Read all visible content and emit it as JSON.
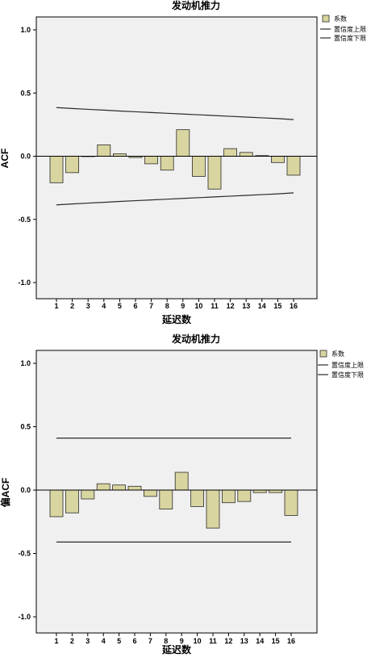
{
  "chart_data": [
    {
      "type": "bar",
      "title": "发动机推力",
      "xlabel": "延迟数",
      "ylabel": "ACF",
      "ylim": [
        -1.0,
        1.0
      ],
      "yticks": [
        "1.0",
        "0.5",
        "0.0",
        "-0.5",
        "-1.0"
      ],
      "categories": [
        "1",
        "2",
        "3",
        "4",
        "5",
        "6",
        "7",
        "8",
        "9",
        "10",
        "11",
        "12",
        "13",
        "14",
        "15",
        "16"
      ],
      "series": [
        {
          "name": "系数",
          "values": [
            -0.21,
            -0.13,
            0.0,
            0.09,
            0.02,
            -0.01,
            -0.06,
            -0.11,
            0.21,
            -0.16,
            -0.26,
            0.06,
            0.03,
            0.005,
            -0.05,
            -0.15
          ]
        },
        {
          "name": "置信度上限",
          "values": [
            0.385,
            0.378,
            0.371,
            0.365,
            0.358,
            0.352,
            0.346,
            0.34,
            0.334,
            0.328,
            0.322,
            0.316,
            0.31,
            0.304,
            0.298,
            0.29
          ]
        },
        {
          "name": "置信度下限",
          "values": [
            -0.385,
            -0.378,
            -0.371,
            -0.365,
            -0.358,
            -0.352,
            -0.346,
            -0.34,
            -0.334,
            -0.328,
            -0.322,
            -0.316,
            -0.31,
            -0.304,
            -0.298,
            -0.29
          ]
        }
      ],
      "colors": {
        "bar": "#d9d5a0",
        "bar_stroke": "#2b2b2b",
        "plot_bg": "#f0f0f0",
        "line": "#2b2b2b"
      },
      "legend": {
        "position": "top-right",
        "items": [
          "系数",
          "置信度上限",
          "置信度下限"
        ]
      },
      "grid": false
    },
    {
      "type": "bar",
      "title": "发动机推力",
      "xlabel": "延迟数",
      "ylabel": "偏ACF",
      "ylim": [
        -1.0,
        1.0
      ],
      "yticks": [
        "1.0",
        "0.5",
        "0.0",
        "-0.5",
        "-1.0"
      ],
      "categories": [
        "1",
        "2",
        "3",
        "4",
        "5",
        "6",
        "7",
        "8",
        "9",
        "10",
        "11",
        "12",
        "13",
        "14",
        "15",
        "16"
      ],
      "series": [
        {
          "name": "系数",
          "values": [
            -0.21,
            -0.18,
            -0.07,
            0.05,
            0.04,
            0.03,
            -0.05,
            -0.15,
            0.14,
            -0.13,
            -0.3,
            -0.1,
            -0.09,
            -0.02,
            -0.02,
            -0.2
          ]
        },
        {
          "name": "置信度上限",
          "values": [
            0.41,
            0.41,
            0.41,
            0.41,
            0.41,
            0.41,
            0.41,
            0.41,
            0.41,
            0.41,
            0.41,
            0.41,
            0.41,
            0.41,
            0.41,
            0.41
          ]
        },
        {
          "name": "置信度下限",
          "values": [
            -0.41,
            -0.41,
            -0.41,
            -0.41,
            -0.41,
            -0.41,
            -0.41,
            -0.41,
            -0.41,
            -0.41,
            -0.41,
            -0.41,
            -0.41,
            -0.41,
            -0.41,
            -0.41
          ]
        }
      ],
      "colors": {
        "bar": "#d9d5a0",
        "bar_stroke": "#2b2b2b",
        "plot_bg": "#f0f0f0",
        "line": "#2b2b2b"
      },
      "legend": {
        "position": "top-right",
        "items": [
          "系数",
          "置信度上限",
          "置信度下限"
        ]
      },
      "grid": false
    }
  ]
}
